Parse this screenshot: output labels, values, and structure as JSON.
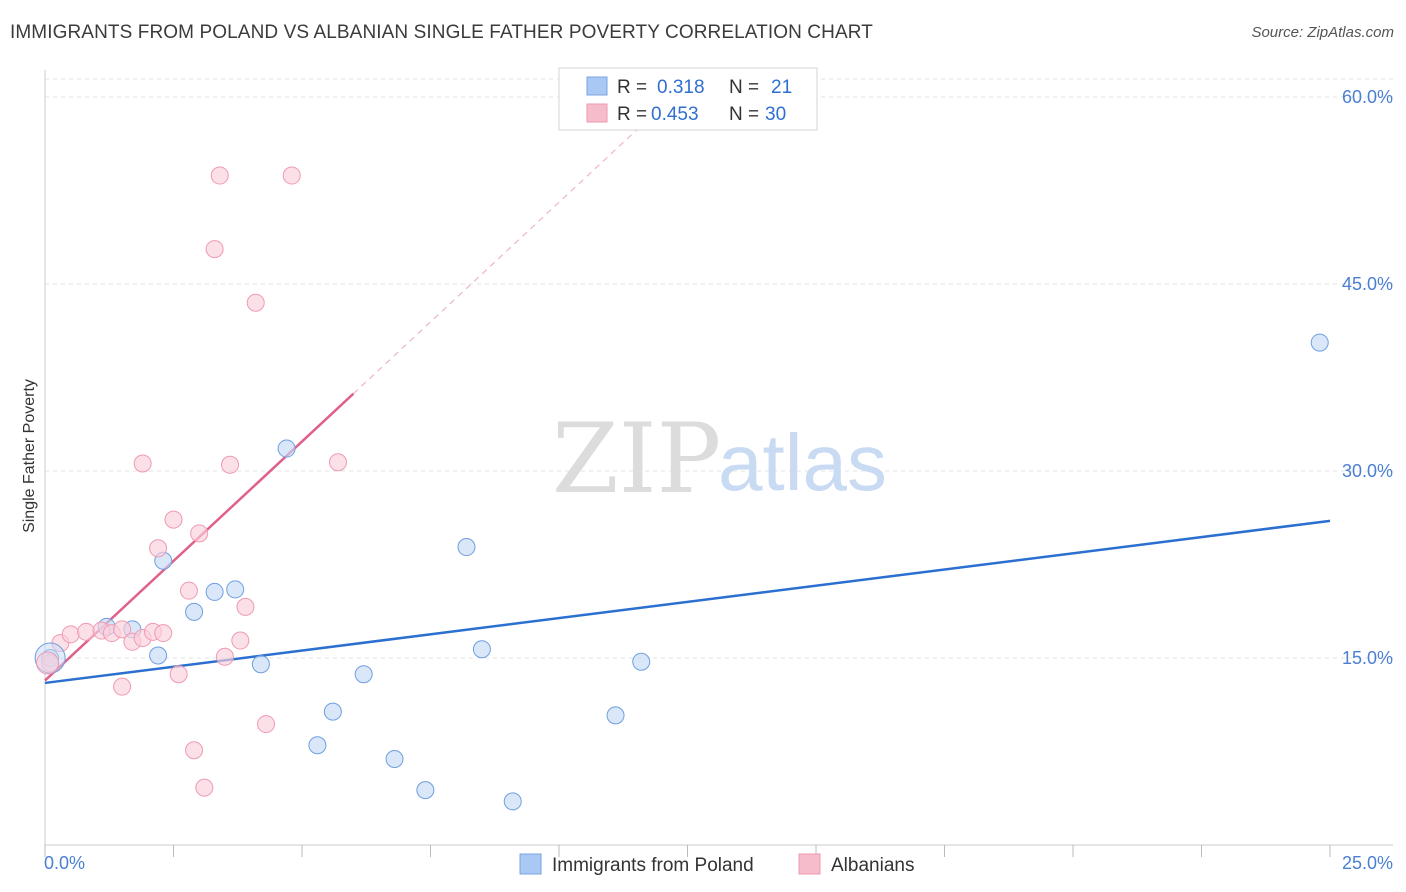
{
  "title": "IMMIGRANTS FROM POLAND VS ALBANIAN SINGLE FATHER POVERTY CORRELATION CHART",
  "source": "Source: ZipAtlas.com",
  "watermark": {
    "zip": "ZIP",
    "atlas": "atlas"
  },
  "legend": {
    "series": [
      {
        "r_label": "R =",
        "r_value": "0.318",
        "n_label": "N =",
        "n_value": "21",
        "color": "#a9c8f3"
      },
      {
        "r_label": "R =",
        "r_value": "0.453",
        "n_label": "N =",
        "n_value": "30",
        "color": "#f7bccc"
      }
    ]
  },
  "chart_data": {
    "type": "scatter",
    "title": "IMMIGRANTS FROM POLAND VS ALBANIAN SINGLE FATHER POVERTY CORRELATION CHART",
    "xlabel": "",
    "ylabel": "Single Father Poverty",
    "xlim": [
      0,
      25
    ],
    "ylim": [
      0,
      60
    ],
    "x_tick_labels": [
      "0.0%",
      "25.0%"
    ],
    "y_ticks": [
      15,
      30,
      45,
      60
    ],
    "y_tick_labels": [
      "15.0%",
      "30.0%",
      "45.0%",
      "60.0%"
    ],
    "grid": true,
    "legend_placement": "top-center",
    "series": [
      {
        "name": "Immigrants from Poland",
        "color": "#6f9fe0",
        "fill": "#c5daf6",
        "trend_color": "#2b6fd0",
        "trend": {
          "x0": 0,
          "y0": 13.0,
          "x1": 25,
          "y1": 26.0,
          "dashed_to": null
        },
        "points": [
          [
            0.1,
            15.0
          ],
          [
            1.2,
            17.5
          ],
          [
            1.7,
            17.3
          ],
          [
            2.2,
            15.2
          ],
          [
            2.3,
            22.8
          ],
          [
            2.9,
            18.7
          ],
          [
            3.3,
            20.3
          ],
          [
            3.7,
            20.5
          ],
          [
            4.2,
            14.5
          ],
          [
            4.7,
            31.8
          ],
          [
            5.6,
            10.7
          ],
          [
            5.3,
            8.0
          ],
          [
            6.2,
            13.7
          ],
          [
            6.8,
            6.9
          ],
          [
            7.4,
            4.4
          ],
          [
            8.2,
            23.9
          ],
          [
            8.5,
            15.7
          ],
          [
            9.1,
            3.5
          ],
          [
            11.1,
            10.4
          ],
          [
            11.6,
            14.7
          ],
          [
            24.8,
            40.3
          ]
        ]
      },
      {
        "name": "Albanians",
        "color": "#ef9ab2",
        "fill": "#fad0dc",
        "trend_color": "#e0608c",
        "trend": {
          "x0": 0,
          "y0": 13.2,
          "x1": 6.0,
          "y1": 36.2,
          "dashed_x1": 12.2,
          "dashed_y1": 60.0
        },
        "points": [
          [
            0.1,
            14.6
          ],
          [
            0.3,
            16.2
          ],
          [
            0.5,
            16.9
          ],
          [
            0.8,
            17.1
          ],
          [
            1.1,
            17.2
          ],
          [
            1.3,
            17.0
          ],
          [
            1.5,
            17.3
          ],
          [
            1.7,
            16.3
          ],
          [
            1.9,
            16.6
          ],
          [
            2.1,
            17.1
          ],
          [
            2.3,
            17.0
          ],
          [
            1.5,
            12.7
          ],
          [
            1.9,
            30.6
          ],
          [
            2.2,
            23.8
          ],
          [
            2.5,
            26.1
          ],
          [
            2.6,
            13.7
          ],
          [
            2.8,
            20.4
          ],
          [
            2.9,
            7.6
          ],
          [
            3.0,
            25.0
          ],
          [
            3.1,
            4.6
          ],
          [
            3.3,
            47.8
          ],
          [
            3.4,
            53.7
          ],
          [
            3.5,
            15.1
          ],
          [
            3.6,
            30.5
          ],
          [
            3.8,
            16.4
          ],
          [
            3.9,
            19.1
          ],
          [
            4.1,
            43.5
          ],
          [
            4.3,
            9.7
          ],
          [
            4.8,
            53.7
          ],
          [
            5.7,
            30.7
          ]
        ]
      }
    ]
  }
}
